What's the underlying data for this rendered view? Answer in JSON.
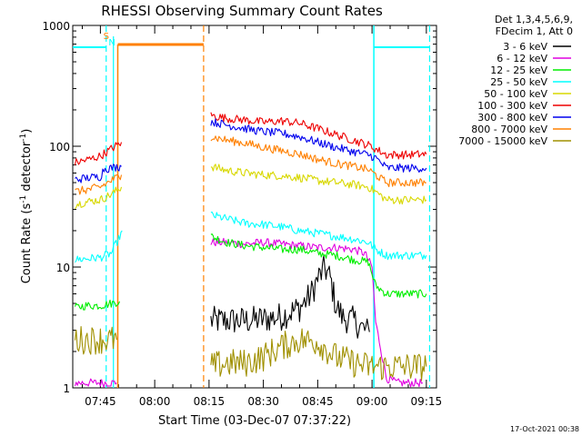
{
  "chart_data": {
    "type": "line",
    "title": "RHESSI Observing Summary Count Rates",
    "xlabel": "Start Time (03-Dec-07 07:37:22)",
    "ylabel": "Count Rate (s",
    "ylabel_sup1": "-1",
    "ylabel_mid": " detector",
    "ylabel_sup2": "-1",
    "ylabel_end": ")",
    "yscale": "log",
    "ylim": [
      1,
      1000
    ],
    "xlim_minutes": [
      37.37,
      137.8
    ],
    "x_ticks": [
      {
        "label": "07:45",
        "minute": 45
      },
      {
        "label": "08:00",
        "minute": 60
      },
      {
        "label": "08:15",
        "minute": 75
      },
      {
        "label": "08:30",
        "minute": 90
      },
      {
        "label": "08:45",
        "minute": 105
      },
      {
        "label": "09:00",
        "minute": 120
      },
      {
        "label": "09:15",
        "minute": 135
      }
    ],
    "y_ticks": [
      {
        "label": "1",
        "value": 1
      },
      {
        "label": "10",
        "value": 10
      },
      {
        "label": "100",
        "value": 100
      },
      {
        "label": "1000",
        "value": 1000
      }
    ],
    "legend_header": [
      "Det 1,3,4,5,6,9,",
      "FDecim 1, Att 0"
    ],
    "series": [
      {
        "name": "3 - 6 keV",
        "color": "#000000",
        "points": [
          [
            75.5,
            3.6
          ],
          [
            80,
            3.6
          ],
          [
            85,
            3.6
          ],
          [
            90,
            3.7
          ],
          [
            95,
            3.9
          ],
          [
            100,
            4.6
          ],
          [
            103,
            5.8
          ],
          [
            105,
            8
          ],
          [
            107,
            9.8
          ],
          [
            108.5,
            8
          ],
          [
            110,
            4.8
          ],
          [
            112,
            3.8
          ],
          [
            115,
            3.6
          ],
          [
            118,
            3.0
          ],
          [
            119.3,
            2.9
          ]
        ]
      },
      {
        "name": "6 - 12 keV",
        "color": "#e000e0",
        "points": [
          [
            38,
            1.1
          ],
          [
            45,
            1.1
          ],
          [
            49.5,
            1.1
          ],
          [
            75.5,
            16
          ],
          [
            80,
            16
          ],
          [
            85,
            15.5
          ],
          [
            90,
            16
          ],
          [
            95,
            15.5
          ],
          [
            100,
            15
          ],
          [
            105,
            14.5
          ],
          [
            110,
            14.5
          ],
          [
            115,
            14
          ],
          [
            118,
            13
          ],
          [
            120,
            10
          ],
          [
            121,
            3.5
          ],
          [
            124,
            1.2
          ],
          [
            127,
            1.1
          ],
          [
            134,
            1.1
          ]
        ]
      },
      {
        "name": "12 - 25 keV",
        "color": "#00ee00",
        "points": [
          [
            38,
            4.6
          ],
          [
            41,
            4.8
          ],
          [
            45,
            4.8
          ],
          [
            48,
            5.0
          ],
          [
            50.3,
            5.2
          ],
          [
            75.5,
            18
          ],
          [
            80,
            16
          ],
          [
            85,
            15
          ],
          [
            90,
            14.5
          ],
          [
            95,
            14
          ],
          [
            100,
            14
          ],
          [
            105,
            13
          ],
          [
            110,
            12.5
          ],
          [
            115,
            11.5
          ],
          [
            119,
            11
          ],
          [
            121,
            7
          ],
          [
            124,
            6
          ],
          [
            130,
            6
          ],
          [
            135,
            6
          ]
        ]
      },
      {
        "name": "25 - 50 keV",
        "color": "#00ffff",
        "points": [
          [
            38,
            11.5
          ],
          [
            45,
            12
          ],
          [
            48,
            13
          ],
          [
            50,
            17
          ],
          [
            51,
            20
          ],
          [
            75.5,
            27
          ],
          [
            80,
            25
          ],
          [
            85,
            23
          ],
          [
            90,
            22.5
          ],
          [
            95,
            21.5
          ],
          [
            100,
            20
          ],
          [
            105,
            19
          ],
          [
            110,
            18
          ],
          [
            115,
            17
          ],
          [
            119,
            16
          ],
          [
            121,
            14
          ],
          [
            124,
            12.5
          ],
          [
            130,
            12.5
          ],
          [
            135,
            12.5
          ]
        ]
      },
      {
        "name": "50 - 100 keV",
        "color": "#d8d800",
        "points": [
          [
            38,
            33
          ],
          [
            42,
            35
          ],
          [
            45,
            36
          ],
          [
            48,
            40
          ],
          [
            50.8,
            46
          ],
          [
            75.5,
            68
          ],
          [
            80,
            63
          ],
          [
            85,
            60
          ],
          [
            90,
            58
          ],
          [
            95,
            57
          ],
          [
            100,
            55
          ],
          [
            105,
            52
          ],
          [
            110,
            50
          ],
          [
            115,
            48
          ],
          [
            119,
            46
          ],
          [
            121,
            42
          ],
          [
            124,
            36
          ],
          [
            130,
            36
          ],
          [
            135,
            36
          ]
        ]
      },
      {
        "name": "100 - 300 keV",
        "color": "#ee0000",
        "points": [
          [
            38,
            73
          ],
          [
            42,
            78
          ],
          [
            45,
            83
          ],
          [
            48,
            95
          ],
          [
            50.8,
            108
          ],
          [
            75.5,
            180
          ],
          [
            80,
            170
          ],
          [
            85,
            165
          ],
          [
            90,
            158
          ],
          [
            95,
            162
          ],
          [
            100,
            155
          ],
          [
            105,
            140
          ],
          [
            110,
            125
          ],
          [
            115,
            112
          ],
          [
            119,
            102
          ],
          [
            121,
            95
          ],
          [
            124,
            85
          ],
          [
            130,
            85
          ],
          [
            135,
            86
          ]
        ]
      },
      {
        "name": "300 - 800 keV",
        "color": "#0000ee",
        "points": [
          [
            38,
            53
          ],
          [
            42,
            55
          ],
          [
            45,
            56
          ],
          [
            46,
            65
          ],
          [
            50.8,
            68
          ],
          [
            75.5,
            160
          ],
          [
            80,
            150
          ],
          [
            85,
            140
          ],
          [
            90,
            132
          ],
          [
            95,
            128
          ],
          [
            100,
            120
          ],
          [
            105,
            108
          ],
          [
            110,
            98
          ],
          [
            115,
            90
          ],
          [
            119,
            85
          ],
          [
            121,
            80
          ],
          [
            124,
            66
          ],
          [
            130,
            66
          ],
          [
            135,
            66
          ]
        ]
      },
      {
        "name": "800 - 7000 keV",
        "color": "#ff8000",
        "points": [
          [
            38,
            42
          ],
          [
            42,
            44
          ],
          [
            45,
            46
          ],
          [
            48,
            52
          ],
          [
            50.8,
            58
          ],
          [
            75.5,
            120
          ],
          [
            80,
            112
          ],
          [
            85,
            106
          ],
          [
            90,
            98
          ],
          [
            95,
            92
          ],
          [
            100,
            86
          ],
          [
            105,
            78
          ],
          [
            110,
            72
          ],
          [
            115,
            68
          ],
          [
            119,
            64
          ],
          [
            121,
            58
          ],
          [
            124,
            50
          ],
          [
            130,
            50
          ],
          [
            135,
            50
          ]
        ]
      },
      {
        "name": "7000 - 15000 keV",
        "color": "#a09000",
        "points": [
          [
            38,
            2.5
          ],
          [
            45,
            2.5
          ],
          [
            49.5,
            2.5
          ],
          [
            75.5,
            1.5
          ],
          [
            80,
            1.6
          ],
          [
            85,
            1.6
          ],
          [
            90,
            1.8
          ],
          [
            95,
            2.2
          ],
          [
            100,
            2.5
          ],
          [
            105,
            2.4
          ],
          [
            110,
            1.8
          ],
          [
            115,
            1.6
          ],
          [
            119,
            1.5
          ],
          [
            121,
            1.5
          ],
          [
            125,
            1.5
          ],
          [
            130,
            1.5
          ],
          [
            135,
            1.5
          ]
        ]
      }
    ],
    "annotations": [
      {
        "label": "S",
        "color": "#ff8000",
        "minute": 46.6
      },
      {
        "label": "N",
        "color": "#00ffff",
        "minute": 48.2
      }
    ],
    "attenuator_level": 660
  },
  "footer": {
    "timestamp": "17-Oct-2021 00:38"
  }
}
